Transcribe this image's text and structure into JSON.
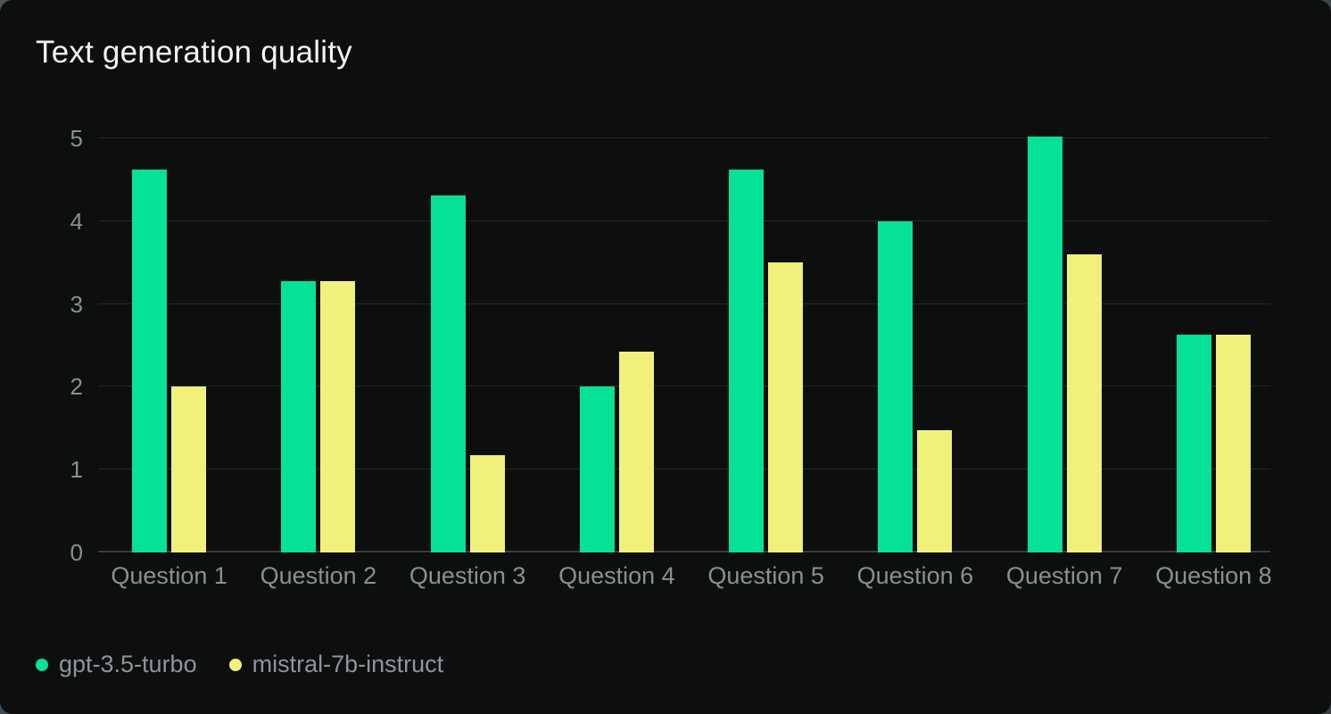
{
  "header": {
    "title": "Text generation quality"
  },
  "colors": {
    "card_background": "#0d0f0e",
    "page_background": "#424a50",
    "title_text": "#f2f3f2",
    "axis_label_text": "#8a8e95",
    "legend_label_text": "#8f939c",
    "gridline": "#252725",
    "zero_axis_line": "#3a3c3d",
    "series_green": "#06e295",
    "series_yellow": "#eff17b"
  },
  "chart_data": {
    "type": "bar",
    "title": "Text generation quality",
    "categories": [
      "Question 1",
      "Question 2",
      "Question 3",
      "Question 4",
      "Question 5",
      "Question 6",
      "Question 7",
      "Question 8"
    ],
    "series": [
      {
        "name": "gpt-3.5-turbo",
        "color": "#06e295",
        "values": [
          4.62,
          3.28,
          4.31,
          2.0,
          4.62,
          4.0,
          5.02,
          2.63
        ]
      },
      {
        "name": "mistral-7b-instruct",
        "color": "#eff17b",
        "values": [
          2.0,
          3.28,
          1.18,
          2.43,
          3.5,
          1.48,
          3.6,
          2.63
        ]
      }
    ],
    "xlabel": "",
    "ylabel": "",
    "ylim": [
      0,
      5
    ],
    "yticks": [
      0,
      1,
      2,
      3,
      4,
      5
    ],
    "grid": true,
    "legend_position": "bottom-left"
  }
}
